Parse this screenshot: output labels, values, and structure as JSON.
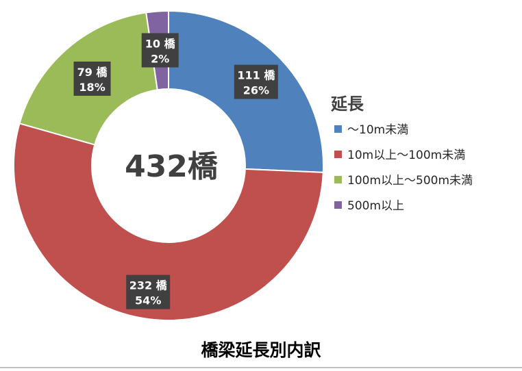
{
  "chart_data": {
    "type": "pie",
    "variant": "donut",
    "title": "橋梁延長別内訳",
    "center_label": "432橋",
    "legend": {
      "title": "延長",
      "placement": "right"
    },
    "categories": [
      "～10m未満",
      "10m以上～100m未満",
      "100m以上～500m未満",
      "500m以上"
    ],
    "values": [
      111,
      232,
      79,
      10
    ],
    "percent_labels": [
      "26%",
      "54%",
      "18%",
      "2%"
    ],
    "count_labels": [
      "111 橋",
      "232 橋",
      "79 橋",
      "10 橋"
    ],
    "colors": [
      "#4F81BD",
      "#C0504D",
      "#9BBB59",
      "#8064A2"
    ]
  }
}
